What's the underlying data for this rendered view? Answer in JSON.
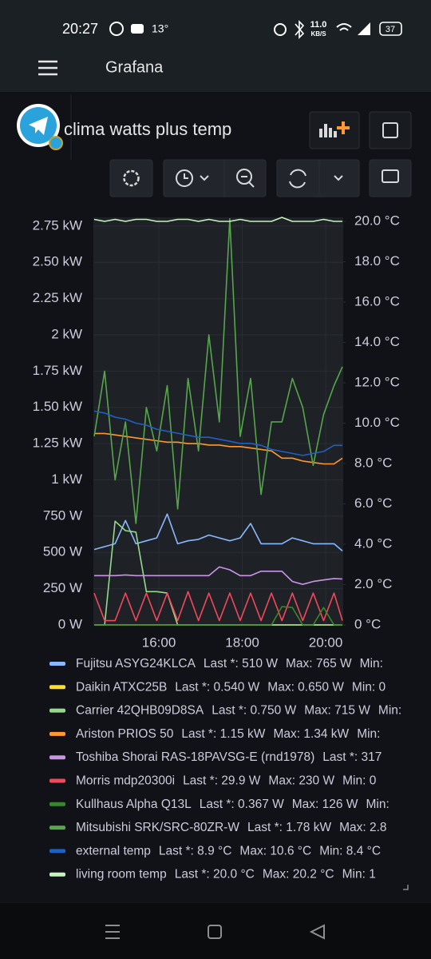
{
  "status_bar": {
    "time": "20:27",
    "temperature": "13°",
    "net_speed": "11.0",
    "net_unit": "KB/S",
    "battery": "37"
  },
  "app_bar": {
    "title": "Grafana"
  },
  "dashboard": {
    "title": "clima watts plus temp"
  },
  "chart_data": {
    "type": "line",
    "grid": true,
    "x": [
      14.45,
      14.7,
      14.95,
      15.2,
      15.45,
      15.7,
      15.95,
      16.2,
      16.45,
      16.7,
      16.95,
      17.2,
      17.45,
      17.7,
      17.95,
      18.2,
      18.45,
      18.7,
      18.95,
      19.2,
      19.45,
      19.7,
      19.95,
      20.2,
      20.4
    ],
    "xlim": [
      14.43,
      20.42
    ],
    "xticks": [
      {
        "value": 16,
        "label": "16:00"
      },
      {
        "value": 18,
        "label": "18:00"
      },
      {
        "value": 20,
        "label": "20:00"
      }
    ],
    "ylim": [
      0,
      2810
    ],
    "yticks": [
      {
        "value": 0,
        "label": "0 W"
      },
      {
        "value": 250,
        "label": "250 W"
      },
      {
        "value": 500,
        "label": "500 W"
      },
      {
        "value": 750,
        "label": "750 W"
      },
      {
        "value": 1000,
        "label": "1 kW"
      },
      {
        "value": 1250,
        "label": "1.25 kW"
      },
      {
        "value": 1500,
        "label": "1.50 kW"
      },
      {
        "value": 1750,
        "label": "1.75 kW"
      },
      {
        "value": 2000,
        "label": "2 kW"
      },
      {
        "value": 2250,
        "label": "2.25 kW"
      },
      {
        "value": 2500,
        "label": "2.50 kW"
      },
      {
        "value": 2750,
        "label": "2.75 kW"
      }
    ],
    "y2lim": [
      0,
      20.2
    ],
    "y2ticks": [
      {
        "value": 0,
        "label": "0 °C"
      },
      {
        "value": 2,
        "label": "2.0 °C"
      },
      {
        "value": 4,
        "label": "4.0 °C"
      },
      {
        "value": 6,
        "label": "6.0 °C"
      },
      {
        "value": 8,
        "label": "8.0 °C"
      },
      {
        "value": 10,
        "label": "10.0 °C"
      },
      {
        "value": 12,
        "label": "12.0 °C"
      },
      {
        "value": 14,
        "label": "14.0 °C"
      },
      {
        "value": 16,
        "label": "16.0 °C"
      },
      {
        "value": 18,
        "label": "18.0 °C"
      },
      {
        "value": 20,
        "label": "20.0 °C"
      }
    ],
    "series": [
      {
        "name": "Fujitsu ASYG24KLCA",
        "color": "#8ab8ff",
        "values": [
          520,
          540,
          560,
          720,
          560,
          580,
          600,
          765,
          560,
          580,
          590,
          620,
          600,
          580,
          600,
          700,
          560,
          560,
          560,
          600,
          580,
          560,
          560,
          560,
          510
        ],
        "legend_stats": [
          "Last *: 510 W",
          "Max: 765 W",
          "Min:"
        ]
      },
      {
        "name": "Daikin ATXC25B",
        "color": "#fade2a",
        "values": [
          0.6,
          0.6,
          0.65,
          0.6,
          0.6,
          0.6,
          0.6,
          0.6,
          0.6,
          0.6,
          0.6,
          0.6,
          0.6,
          0.6,
          0.6,
          0.6,
          0.6,
          0.6,
          0.6,
          0.6,
          0.6,
          0.6,
          0.6,
          0.6,
          0.54
        ],
        "legend_stats": [
          "Last *: 0.540 W",
          "Max: 0.650 W",
          "Min: 0"
        ]
      },
      {
        "name": "Carrier 42QHB09D8SA",
        "color": "#96d98d",
        "values": [
          0,
          0,
          715,
          650,
          640,
          230,
          230,
          220,
          0,
          0,
          0,
          0,
          0,
          0,
          0,
          0,
          0,
          0,
          0,
          0,
          0,
          0,
          0,
          0,
          0.75
        ],
        "legend_stats": [
          "Last *: 0.750 W",
          "Max: 715 W",
          "Min:"
        ]
      },
      {
        "name": "Ariston PRIOS 50",
        "color": "#ff9830",
        "values": [
          1320,
          1320,
          1310,
          1300,
          1290,
          1280,
          1270,
          1260,
          1260,
          1250,
          1250,
          1240,
          1240,
          1230,
          1230,
          1220,
          1210,
          1200,
          1150,
          1150,
          1130,
          1120,
          1110,
          1110,
          1150
        ],
        "legend_stats": [
          "Last *: 1.15 kW",
          "Max: 1.34 kW",
          "Min:"
        ]
      },
      {
        "name": "Toshiba Shorai RAS-18PAVSG-E (rnd1978)",
        "color": "#ca95e5",
        "values": [
          340,
          340,
          340,
          345,
          340,
          340,
          340,
          340,
          340,
          340,
          340,
          340,
          400,
          380,
          340,
          340,
          370,
          370,
          370,
          300,
          280,
          300,
          310,
          320,
          317
        ],
        "legend_stats": [
          "Last *: 317"
        ]
      },
      {
        "name": "Morris mdp20300i",
        "color": "#f2495c",
        "values": [
          220,
          30,
          30,
          220,
          30,
          220,
          30,
          220,
          30,
          230,
          30,
          220,
          30,
          220,
          30,
          220,
          30,
          220,
          30,
          220,
          30,
          220,
          30,
          220,
          29.9
        ],
        "legend_stats": [
          "Last *: 29.9 W",
          "Max: 230 W",
          "Min: 0"
        ]
      },
      {
        "name": "Kullhaus Alpha Q13L",
        "color": "#37872d",
        "values": [
          0,
          0,
          0,
          0,
          0,
          0,
          0,
          0,
          0,
          0,
          0,
          0,
          0,
          0,
          0,
          0,
          0,
          0,
          126,
          120,
          0,
          0,
          120,
          0,
          0.367
        ],
        "legend_stats": [
          "Last *: 0.367 W",
          "Max: 126 W",
          "Min:"
        ]
      },
      {
        "name": "Mitsubishi SRK/SRC-80ZR-W",
        "color": "#56a64b",
        "values": [
          1300,
          1750,
          1000,
          1400,
          700,
          1500,
          1200,
          1650,
          800,
          1700,
          1200,
          2000,
          1400,
          2800,
          1300,
          1700,
          900,
          1400,
          1400,
          1700,
          1500,
          1100,
          1450,
          1650,
          1780
        ],
        "legend_stats": [
          "Last *: 1.78 kW",
          "Max: 2.8"
        ]
      },
      {
        "name": "external temp",
        "color": "#1f60c4",
        "axis": "y2",
        "values": [
          10.6,
          10.5,
          10.3,
          10.2,
          10.0,
          9.9,
          9.7,
          9.6,
          9.5,
          9.4,
          9.3,
          9.3,
          9.2,
          9.1,
          9.0,
          9.0,
          8.9,
          8.7,
          8.6,
          8.5,
          8.4,
          8.5,
          8.6,
          8.9,
          8.9
        ],
        "legend_stats": [
          "Last *: 8.9 °C",
          "Max: 10.6 °C",
          "Min: 8.4 °C"
        ]
      },
      {
        "name": "living room temp",
        "color": "#c8f2c2",
        "axis": "y2",
        "values": [
          20.1,
          20.0,
          20.1,
          20.0,
          20.1,
          20.1,
          20.0,
          20.0,
          20.1,
          20.1,
          20.0,
          20.1,
          20.0,
          20.0,
          20.1,
          20.0,
          20.0,
          20.0,
          20.2,
          20.0,
          20.0,
          20.0,
          20.1,
          20.0,
          20.0
        ],
        "legend_stats": [
          "Last *: 20.0 °C",
          "Max: 20.2 °C",
          "Min: 1"
        ]
      }
    ]
  }
}
